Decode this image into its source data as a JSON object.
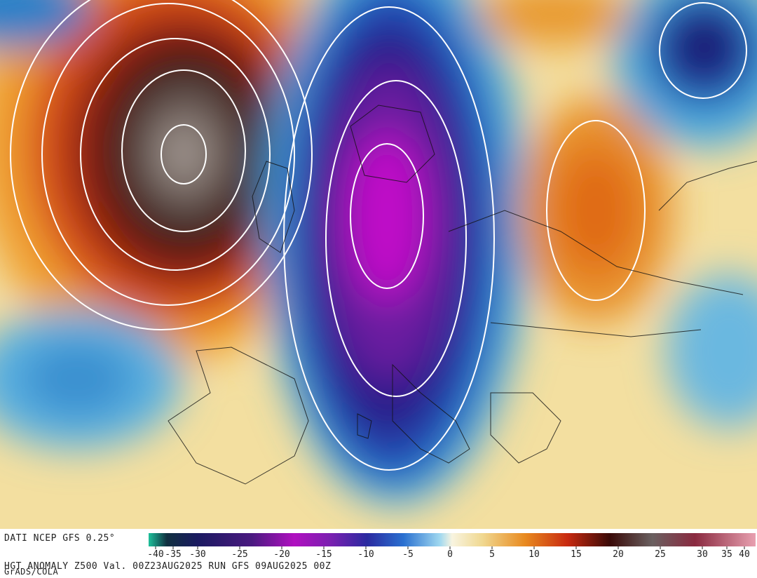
{
  "header": {
    "source": "DATI NCEP GFS 0.25°",
    "product": "HGT ANOMALY Z500 Val. 00Z23AUG2025 RUN GFS 09AUG2025 00Z",
    "credit": "GrADS/COLA"
  },
  "colorbar": {
    "ticks": [
      -40,
      -35,
      -30,
      -25,
      -20,
      -15,
      -10,
      -5,
      0,
      5,
      10,
      15,
      20,
      25,
      30,
      35,
      40
    ]
  }
}
